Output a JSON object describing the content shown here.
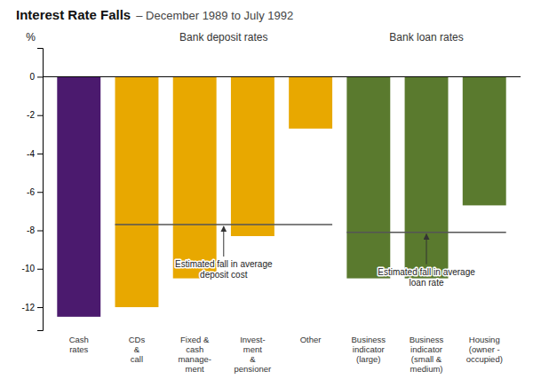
{
  "chart_data": {
    "type": "bar",
    "title": "Interest Rate Falls",
    "subtitle": "– December 1989 to July 1992",
    "y_label": "%",
    "categories": [
      "Cash\nrates",
      "CDs\n&\ncall",
      "Fixed &\ncash\nmanage-\nment",
      "Invest-\nment\n&\npensioner",
      "Other",
      "Business\nindicator\n(large)",
      "Business\nindicator\n(small &\nmedium)",
      "Housing\n(owner -\noccupied)"
    ],
    "values": [
      -12.5,
      -12.0,
      -10.5,
      -8.3,
      -2.7,
      -10.5,
      -10.5,
      -6.7
    ],
    "colors": [
      "#4b1a6e",
      "#e8a800",
      "#e8a800",
      "#e8a800",
      "#e8a800",
      "#5a7a2e",
      "#5a7a2e",
      "#5a7a2e"
    ],
    "ylim": [
      -13.2,
      1.5
    ],
    "yticks": [
      0,
      -2,
      -4,
      -6,
      -8,
      -10,
      -12
    ],
    "grid": false,
    "group_labels": [
      {
        "text": "Bank deposit rates",
        "from": "CDs\n&\ncall",
        "to": "Other"
      },
      {
        "text": "Bank loan rates",
        "from": "Business\nindicator\n(large)",
        "to": "Housing\n(owner -\noccupied)"
      }
    ],
    "annotations": [
      {
        "text": "Estimated fall in average\ndeposit cost",
        "y": -7.7,
        "from": "CDs\n&\ncall",
        "to": "Other"
      },
      {
        "text": "Estimated fall in average\nloan rate",
        "y": -8.1,
        "from": "Business\nindicator\n(large)",
        "to": "Housing\n(owner -\noccupied)"
      }
    ]
  }
}
